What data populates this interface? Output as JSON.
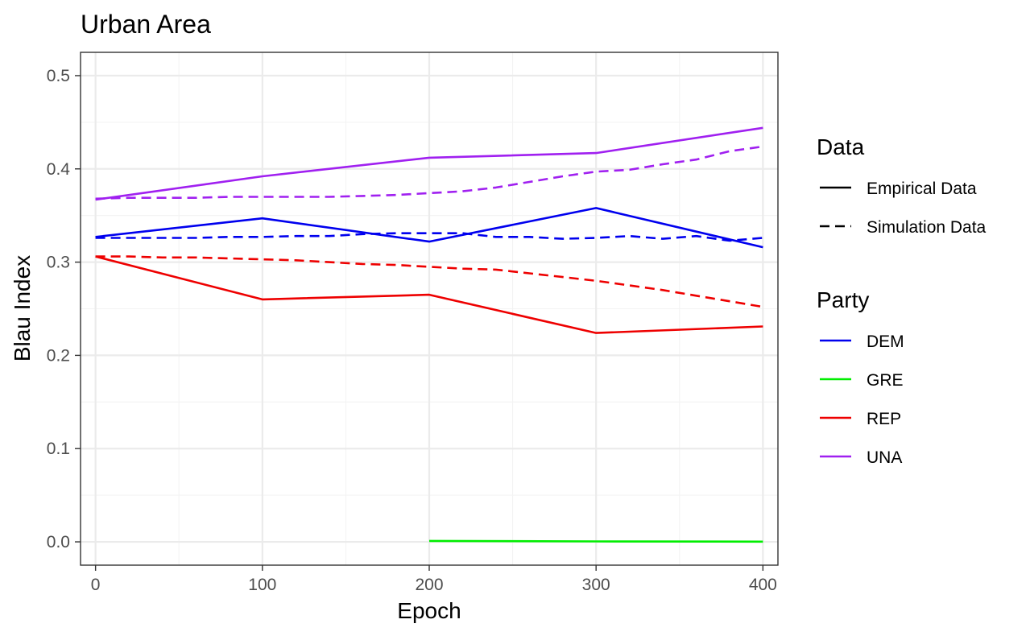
{
  "chart_data": {
    "type": "line",
    "title": "Urban Area",
    "xlabel": "Epoch",
    "ylabel": "Blau Index",
    "xlim": [
      -9,
      409
    ],
    "ylim": [
      -0.025,
      0.525
    ],
    "x_ticks": [
      0,
      100,
      200,
      300,
      400
    ],
    "x_tick_labels": [
      "0",
      "100",
      "200",
      "300",
      "400"
    ],
    "y_ticks": [
      0.0,
      0.1,
      0.2,
      0.3,
      0.4,
      0.5
    ],
    "y_tick_labels": [
      "0.0",
      "0.1",
      "0.2",
      "0.3",
      "0.4",
      "0.5"
    ],
    "grid": true,
    "legend_position": "right",
    "legends": [
      {
        "title": "Data",
        "entries": [
          {
            "label": "Empirical Data",
            "linetype": "solid"
          },
          {
            "label": "Simulation Data",
            "linetype": "dashed"
          }
        ]
      },
      {
        "title": "Party",
        "entries": [
          {
            "label": "DEM",
            "color": "#0000ee"
          },
          {
            "label": "GRE",
            "color": "#00ee00"
          },
          {
            "label": "REP",
            "color": "#ee0000"
          },
          {
            "label": "UNA",
            "color": "#a020f0"
          }
        ]
      }
    ],
    "series": [
      {
        "party": "DEM",
        "data": "Empirical Data",
        "color": "#0000ee",
        "linetype": "solid",
        "x": [
          0,
          100,
          200,
          300,
          400
        ],
        "y": [
          0.327,
          0.347,
          0.322,
          0.358,
          0.316
        ]
      },
      {
        "party": "REP",
        "data": "Empirical Data",
        "color": "#ee0000",
        "linetype": "solid",
        "x": [
          0,
          100,
          200,
          300,
          400
        ],
        "y": [
          0.306,
          0.26,
          0.265,
          0.224,
          0.231
        ]
      },
      {
        "party": "UNA",
        "data": "Empirical Data",
        "color": "#a020f0",
        "linetype": "solid",
        "x": [
          0,
          100,
          200,
          300,
          400
        ],
        "y": [
          0.367,
          0.392,
          0.412,
          0.417,
          0.444
        ]
      },
      {
        "party": "GRE",
        "data": "Empirical Data",
        "color": "#00ee00",
        "linetype": "solid",
        "x": [
          200,
          300,
          400
        ],
        "y": [
          0.001,
          0.0005,
          0.0002
        ]
      },
      {
        "party": "DEM",
        "data": "Simulation Data",
        "color": "#0000ee",
        "linetype": "dashed",
        "x": [
          0,
          20,
          40,
          60,
          80,
          100,
          120,
          140,
          160,
          180,
          200,
          220,
          240,
          260,
          280,
          300,
          320,
          340,
          360,
          380,
          400
        ],
        "y": [
          0.326,
          0.326,
          0.326,
          0.326,
          0.327,
          0.327,
          0.328,
          0.328,
          0.33,
          0.331,
          0.331,
          0.331,
          0.327,
          0.327,
          0.325,
          0.326,
          0.328,
          0.325,
          0.328,
          0.323,
          0.326
        ]
      },
      {
        "party": "REP",
        "data": "Simulation Data",
        "color": "#ee0000",
        "linetype": "dashed",
        "x": [
          0,
          20,
          40,
          60,
          80,
          100,
          120,
          140,
          160,
          180,
          200,
          220,
          240,
          260,
          280,
          300,
          320,
          340,
          360,
          380,
          400
        ],
        "y": [
          0.306,
          0.306,
          0.305,
          0.305,
          0.304,
          0.303,
          0.302,
          0.3,
          0.298,
          0.297,
          0.295,
          0.293,
          0.292,
          0.288,
          0.284,
          0.28,
          0.275,
          0.27,
          0.264,
          0.258,
          0.252
        ]
      },
      {
        "party": "UNA",
        "data": "Simulation Data",
        "color": "#a020f0",
        "linetype": "dashed",
        "x": [
          0,
          20,
          40,
          60,
          80,
          100,
          120,
          140,
          160,
          180,
          200,
          220,
          240,
          260,
          280,
          300,
          320,
          340,
          360,
          380,
          400
        ],
        "y": [
          0.368,
          0.369,
          0.369,
          0.369,
          0.37,
          0.37,
          0.37,
          0.37,
          0.371,
          0.372,
          0.374,
          0.376,
          0.38,
          0.386,
          0.392,
          0.397,
          0.399,
          0.405,
          0.41,
          0.419,
          0.424
        ]
      }
    ]
  }
}
